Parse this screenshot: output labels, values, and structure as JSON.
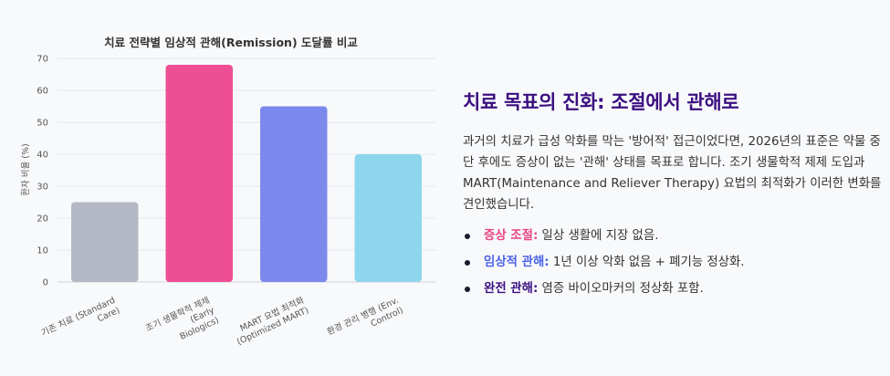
{
  "chart_data": {
    "type": "bar",
    "title": "치료 전략별 임상적 관해(Remission) 도달률 비교",
    "xlabel": "",
    "ylabel": "환자 비율 (%)",
    "ylim": [
      0,
      70
    ],
    "yticks": [
      0,
      10,
      20,
      30,
      40,
      50,
      60,
      70
    ],
    "grid": true,
    "categories": [
      [
        "기존 치료 (Standard",
        "Care)"
      ],
      [
        "조기 생물학적 제제",
        "(Early",
        "Biologics)"
      ],
      [
        "MART 요법 최적화",
        "(Optimized MART)"
      ],
      [
        "환경 관리 병행 (Env.",
        "Control)"
      ]
    ],
    "values": [
      25,
      68,
      55,
      40
    ],
    "colors": [
      "#b4b8c4",
      "#ee4f94",
      "#7b89ec",
      "#8ed5ee"
    ]
  },
  "panel": {
    "title": "치료 목표의 진화: 조절에서 관해로",
    "paragraph": "과거의 치료가 급성 악화를 막는 '방어적' 접근이었다면, 2026년의 표준은 약물 중단 후에도 증상이 없는 '관해' 상태를 목표로 합니다. 조기 생물학적 제제 도입과 MART(Maintenance and Reliever Therapy) 요법의 최적화가 이러한 변화를 견인했습니다.",
    "bullets": [
      {
        "key": "증상 조절:",
        "text": " 일상 생활에 지장 없음."
      },
      {
        "key": "임상적 관해:",
        "text": " 1년 이상 악화 없음 + 폐기능 정상화."
      },
      {
        "key": "완전 관해:",
        "text": " 염증 바이오마커의 정상화 포함."
      }
    ]
  }
}
